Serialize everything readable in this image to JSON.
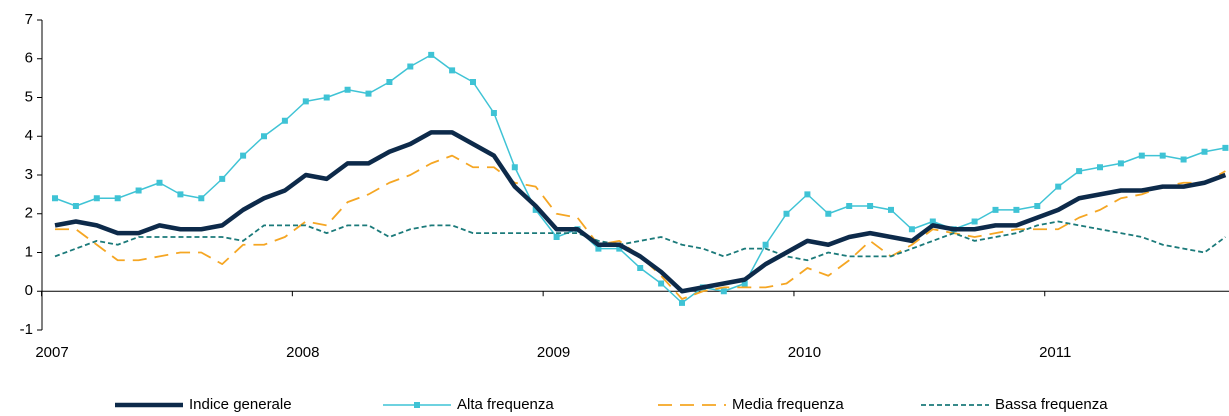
{
  "chart_data": {
    "type": "line",
    "categories": [
      "2007",
      null,
      null,
      null,
      null,
      null,
      null,
      null,
      null,
      null,
      null,
      null,
      "2008",
      null,
      null,
      null,
      null,
      null,
      null,
      null,
      null,
      null,
      null,
      null,
      "2009",
      null,
      null,
      null,
      null,
      null,
      null,
      null,
      null,
      null,
      null,
      null,
      "2010",
      null,
      null,
      null,
      null,
      null,
      null,
      null,
      null,
      null,
      null,
      null,
      "2011",
      null,
      null,
      null,
      null,
      null,
      null,
      null,
      null
    ],
    "ylim": [
      -1,
      7
    ],
    "yticks": [
      -1,
      0,
      1,
      2,
      3,
      4,
      5,
      6,
      7
    ],
    "legend": "bottom",
    "series": [
      {
        "name": "Indice generale",
        "color": "#0d2a4a",
        "values": [
          1.7,
          1.8,
          1.7,
          1.5,
          1.5,
          1.7,
          1.6,
          1.6,
          1.7,
          2.1,
          2.4,
          2.6,
          3.0,
          2.9,
          3.3,
          3.3,
          3.6,
          3.8,
          4.1,
          4.1,
          3.8,
          3.5,
          2.7,
          2.2,
          1.6,
          1.6,
          1.2,
          1.2,
          0.9,
          0.5,
          0.0,
          0.1,
          0.2,
          0.3,
          0.7,
          1.0,
          1.3,
          1.2,
          1.4,
          1.5,
          1.4,
          1.3,
          1.7,
          1.6,
          1.6,
          1.7,
          1.7,
          1.9,
          2.1,
          2.4,
          2.5,
          2.6,
          2.6,
          2.7,
          2.7,
          2.8,
          3.0
        ]
      },
      {
        "name": "Alta frequenza",
        "color": "#3fc3d5",
        "values": [
          2.4,
          2.2,
          2.4,
          2.4,
          2.6,
          2.8,
          2.5,
          2.4,
          2.9,
          3.5,
          4.0,
          4.4,
          4.9,
          5.0,
          5.2,
          5.1,
          5.4,
          5.8,
          6.1,
          5.7,
          5.4,
          4.6,
          3.2,
          2.1,
          1.4,
          1.6,
          1.1,
          1.1,
          0.6,
          0.2,
          -0.3,
          0.1,
          0.0,
          0.2,
          1.2,
          2.0,
          2.5,
          2.0,
          2.2,
          2.2,
          2.1,
          1.6,
          1.8,
          1.6,
          1.8,
          2.1,
          2.1,
          2.2,
          2.7,
          3.1,
          3.2,
          3.3,
          3.5,
          3.5,
          3.4,
          3.6,
          3.7
        ]
      },
      {
        "name": "Media frequenza",
        "color": "#f5a623",
        "values": [
          1.6,
          1.6,
          1.2,
          0.8,
          0.8,
          0.9,
          1.0,
          1.0,
          0.7,
          1.2,
          1.2,
          1.4,
          1.8,
          1.7,
          2.3,
          2.5,
          2.8,
          3.0,
          3.3,
          3.5,
          3.2,
          3.2,
          2.8,
          2.7,
          2.0,
          1.9,
          1.2,
          1.3,
          0.9,
          0.4,
          -0.2,
          0.0,
          0.1,
          0.1,
          0.1,
          0.2,
          0.6,
          0.4,
          0.8,
          1.3,
          0.9,
          1.2,
          1.6,
          1.5,
          1.4,
          1.5,
          1.6,
          1.6,
          1.6,
          1.9,
          2.1,
          2.4,
          2.5,
          2.7,
          2.8,
          2.8,
          3.1
        ]
      },
      {
        "name": "Bassa frequenza",
        "color": "#1b7a7a",
        "values": [
          0.9,
          1.1,
          1.3,
          1.2,
          1.4,
          1.4,
          1.4,
          1.4,
          1.4,
          1.3,
          1.7,
          1.7,
          1.7,
          1.5,
          1.7,
          1.7,
          1.4,
          1.6,
          1.7,
          1.7,
          1.5,
          1.5,
          1.5,
          1.5,
          1.5,
          1.5,
          1.3,
          1.2,
          1.3,
          1.4,
          1.2,
          1.1,
          0.9,
          1.1,
          1.1,
          0.9,
          0.8,
          1.0,
          0.9,
          0.9,
          0.9,
          1.1,
          1.3,
          1.5,
          1.3,
          1.4,
          1.5,
          1.7,
          1.8,
          1.7,
          1.6,
          1.5,
          1.4,
          1.2,
          1.1,
          1.0,
          1.4
        ]
      }
    ]
  }
}
